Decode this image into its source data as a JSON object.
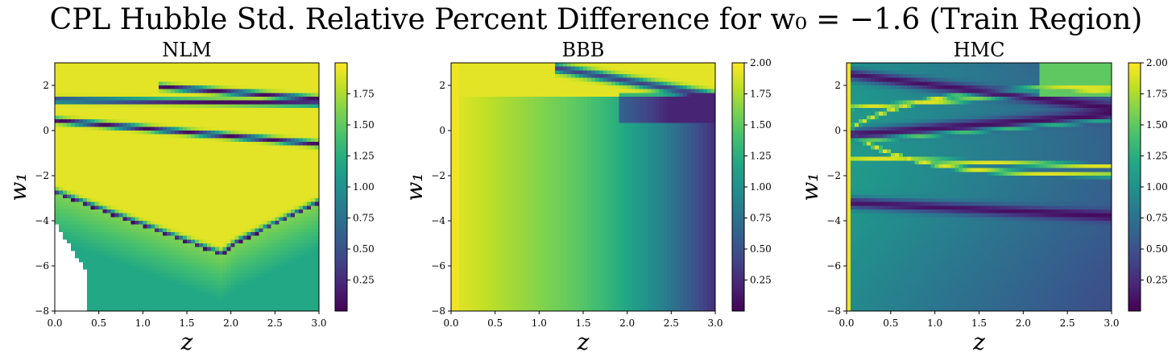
{
  "figure": {
    "suptitle": "CPL Hubble Std. Relative Percent Difference for w₀ = −1.6 (Train Region)"
  },
  "chart_data": [
    {
      "type": "heatmap",
      "title": "NLM",
      "xlabel": "z",
      "ylabel": "w₁",
      "xlim": [
        0.0,
        3.0
      ],
      "ylim": [
        -8,
        3
      ],
      "xticks": [
        "0.0",
        "0.5",
        "1.0",
        "1.5",
        "2.0",
        "2.5",
        "3.0"
      ],
      "yticks": [
        "−8",
        "−6",
        "−4",
        "−2",
        "0",
        "2"
      ],
      "colorbar": {
        "min": 0.0,
        "max": 2.0,
        "ticks": [
          "0.25",
          "0.50",
          "0.75",
          "1.00",
          "1.25",
          "1.50",
          "1.75"
        ],
        "colormap": "viridis"
      },
      "features": "High values (~1.9) across most of the region; low-value (~0) ridges along curves near w₁≈1.5 and w₁≈0.5 fanning out with z, and a dark band from (z=0, w₁≈−2.8) to (z≈1.9, w₁≈−5.5) then rising to (z=3, w₁≈−3.3); blank (masked) region at low z and w₁ below −4"
    },
    {
      "type": "heatmap",
      "title": "BBB",
      "xlabel": "z",
      "ylabel": "w₁",
      "xlim": [
        0.0,
        3.0
      ],
      "ylim": [
        -8,
        3
      ],
      "xticks": [
        "0.0",
        "0.5",
        "1.0",
        "1.5",
        "2.0",
        "2.5",
        "3.0"
      ],
      "yticks": [
        "−8",
        "−6",
        "−4",
        "−2",
        "0",
        "2"
      ],
      "colorbar": {
        "min": 0.0,
        "max": 2.0,
        "ticks": [
          "0.25",
          "0.50",
          "0.75",
          "1.00",
          "1.25",
          "1.50",
          "1.75",
          "2.00"
        ],
        "colormap": "viridis"
      },
      "features": "Values decrease smoothly with z from ~1.9 at z≈0 to ~0.5 at z=3; bright column at z≈0; dark/bright ridge near top right (w₁ between 0.5 and 3, z > 1.2)"
    },
    {
      "type": "heatmap",
      "title": "HMC",
      "xlabel": "z",
      "ylabel": "w₁",
      "xlim": [
        0.0,
        3.0
      ],
      "ylim": [
        -8,
        3
      ],
      "xticks": [
        "0.0",
        "0.5",
        "1.0",
        "1.5",
        "2.0",
        "2.5",
        "3.0"
      ],
      "yticks": [
        "−8",
        "−6",
        "−4",
        "−2",
        "0",
        "2"
      ],
      "colorbar": {
        "min": 0.0,
        "max": 2.0,
        "ticks": [
          "0.25",
          "0.50",
          "0.75",
          "1.00",
          "1.25",
          "1.50",
          "1.75",
          "2.00"
        ],
        "colormap": "viridis"
      },
      "features": "Mostly low-to-medium values (~0.5–1.0); bright column at z≈0; interleaved bright and dark ridges fanning out from (z≈0.3, w₁≈0) toward the right between w₁≈−3.5 and 2.5; bright region in the upper right"
    }
  ]
}
